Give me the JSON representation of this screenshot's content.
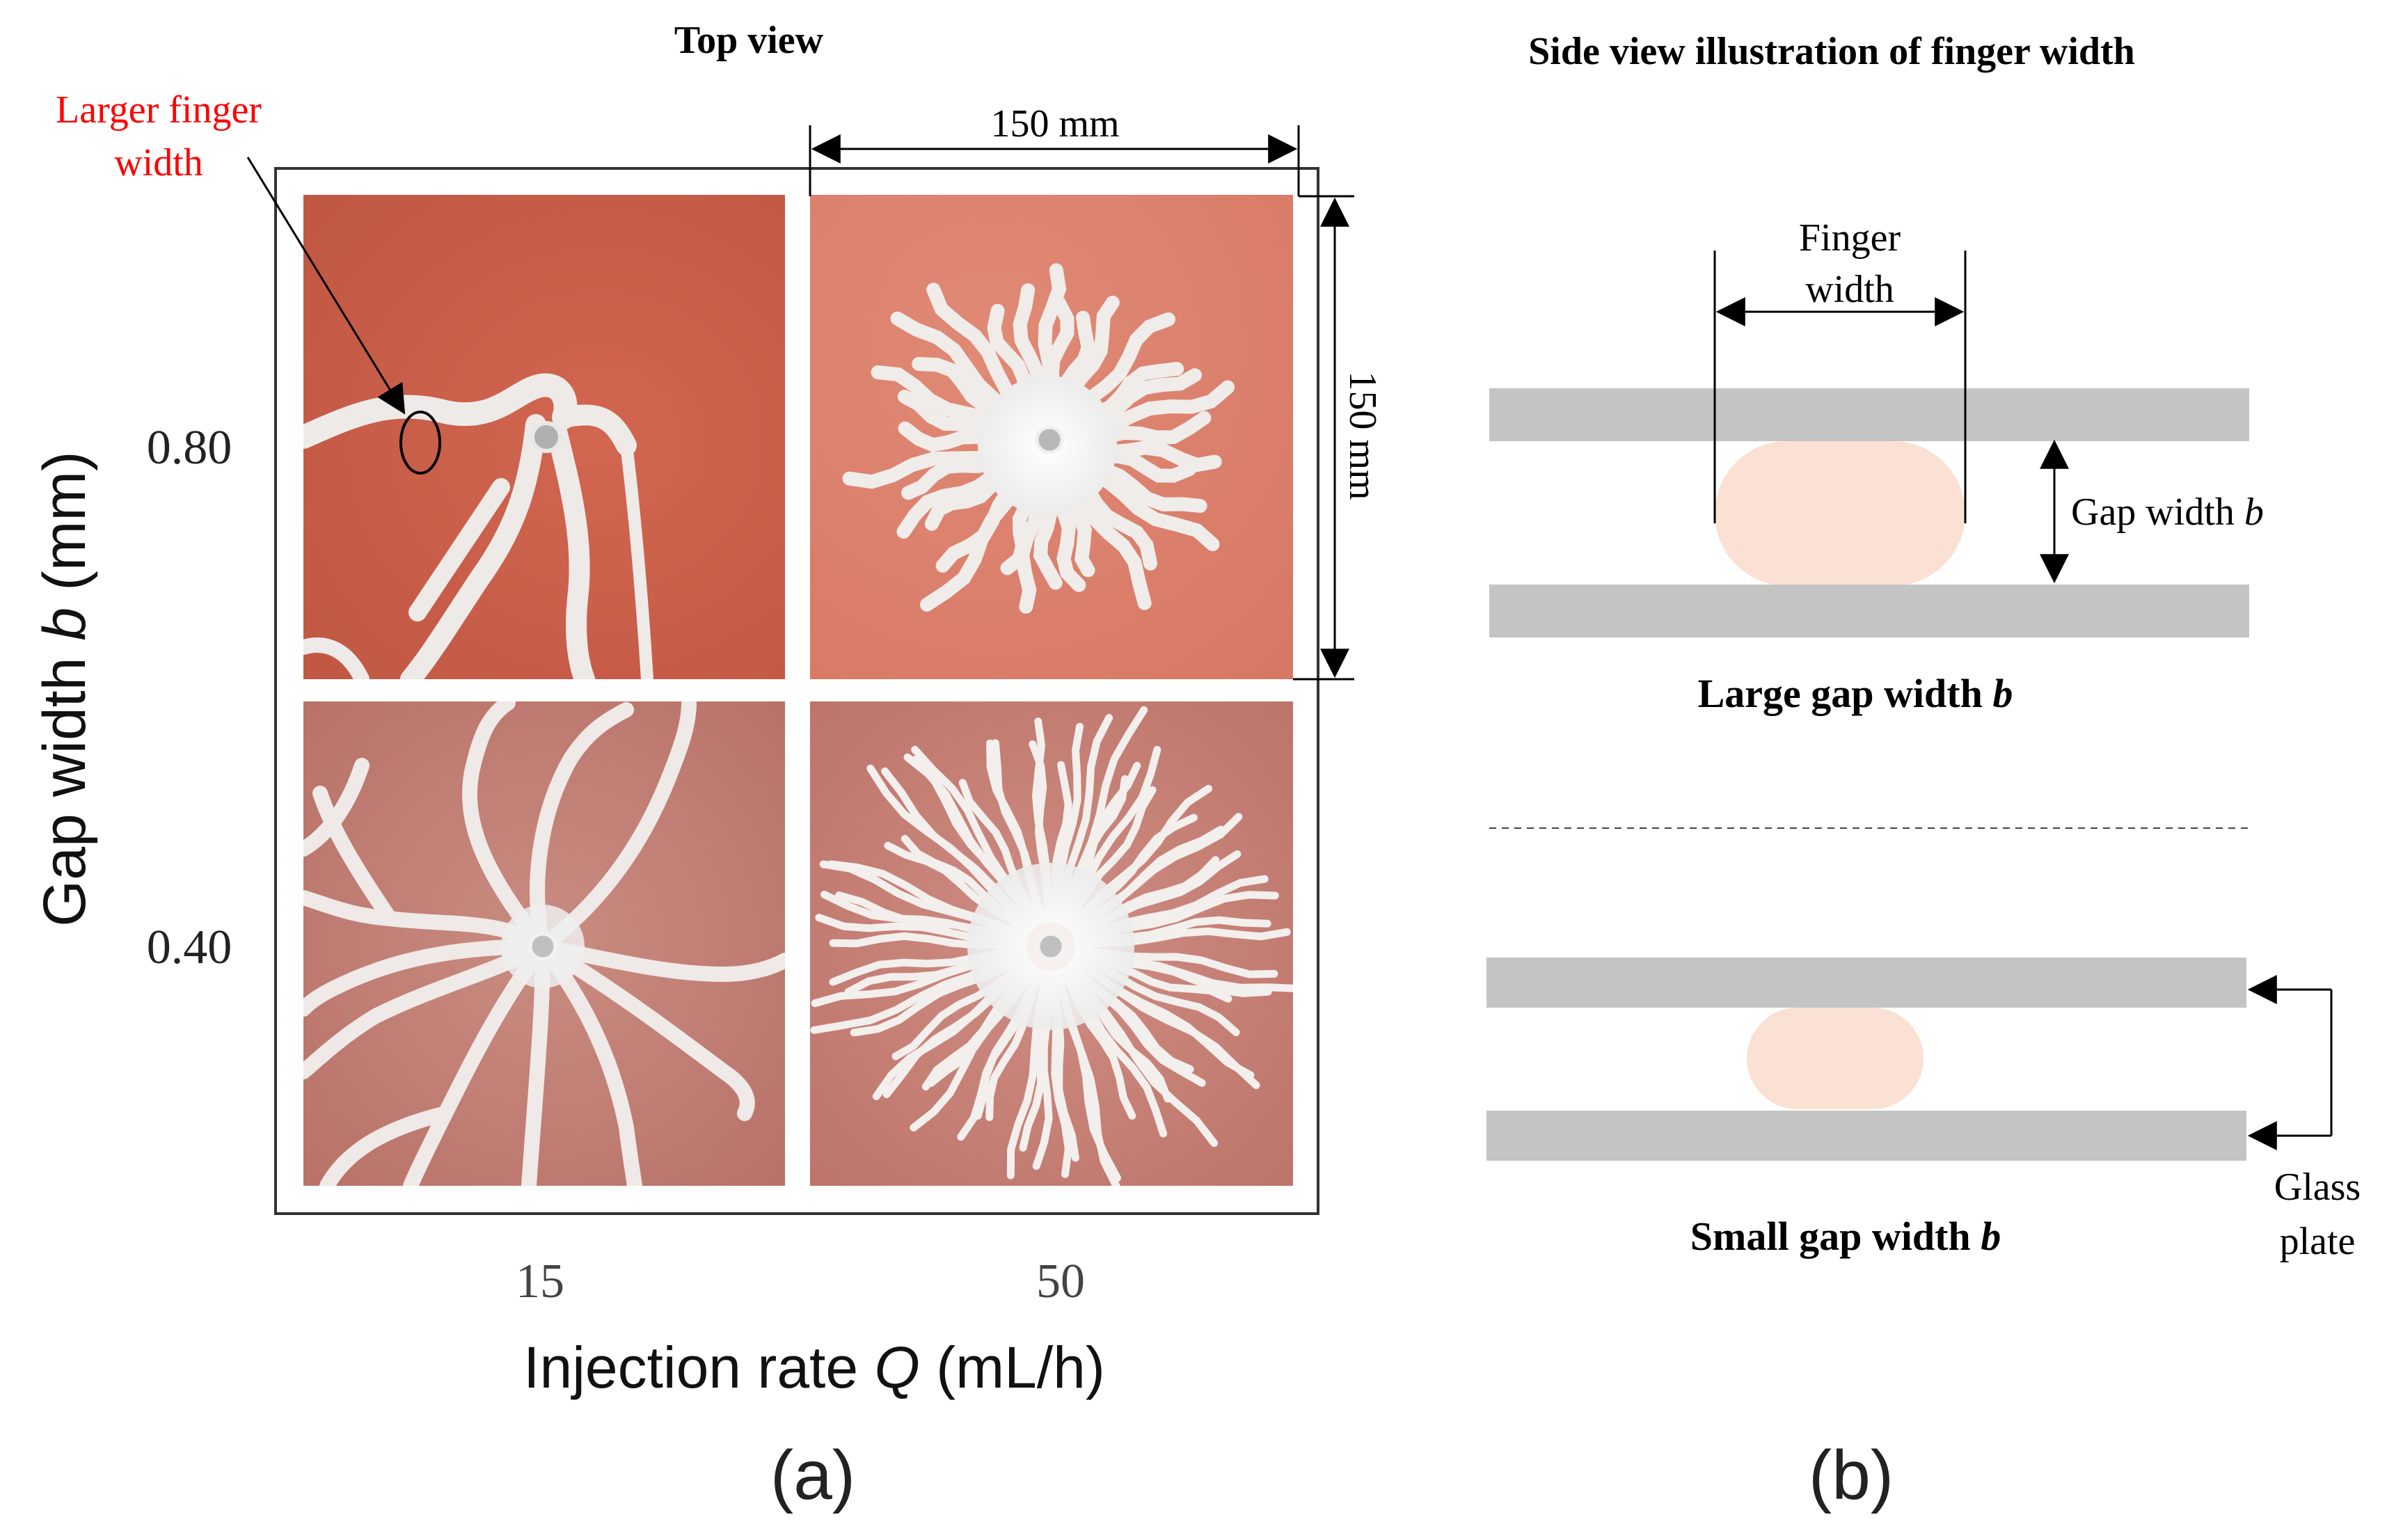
{
  "panel_a": {
    "title": "Top view",
    "annotation_line1": "Larger finger",
    "annotation_line2": "width",
    "dim_horizontal": "150 mm",
    "dim_vertical": "150 mm",
    "y_axis_label_prefix": "Gap width ",
    "y_axis_label_var": "b",
    "y_axis_label_suffix": " (mm)",
    "x_axis_label_prefix": "Injection rate ",
    "x_axis_label_var": "Q",
    "x_axis_label_suffix": " (mL/h)",
    "row_labels": [
      "0.80",
      "0.40"
    ],
    "col_labels": [
      "15",
      "50"
    ],
    "caption": "(a)"
  },
  "panel_b": {
    "title": "Side view illustration of finger width",
    "finger_width_line1": "Finger",
    "finger_width_line2": "width",
    "gap_width_label": "Gap width ",
    "gap_width_var": "b",
    "large_label": "Large gap width ",
    "small_label": "Small gap width ",
    "label_var": "b",
    "glass_line1": "Glass",
    "glass_line2": "plate",
    "caption": "(b)"
  },
  "colors": {
    "dark_red": "#c0533f",
    "salmon": "#d97a66",
    "rose": "#c98a80",
    "finger": "#f1ecea",
    "plate_gray": "#c4c4c4",
    "fluid_peach": "#fbe1d3",
    "annotation_red": "#ff0000"
  }
}
